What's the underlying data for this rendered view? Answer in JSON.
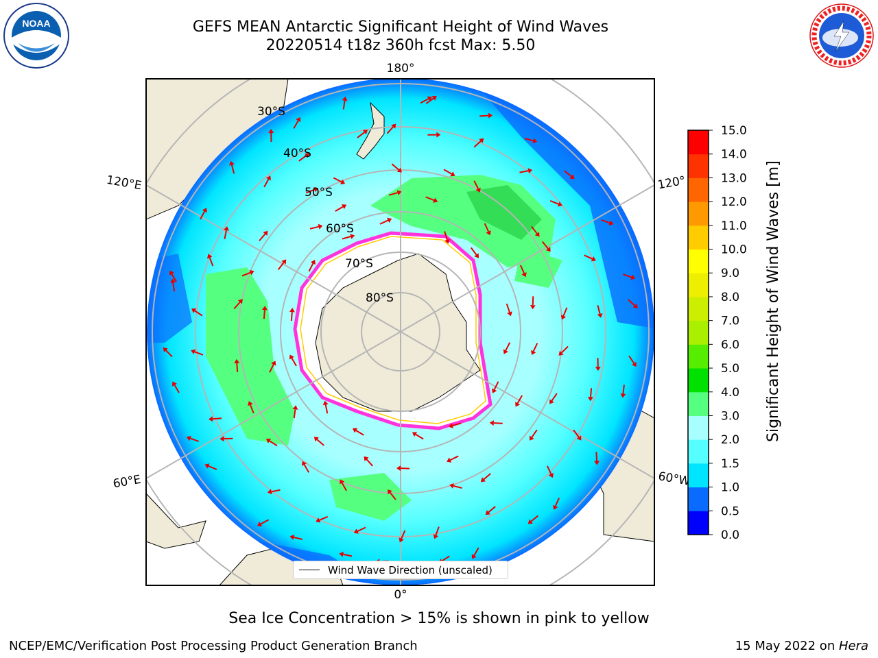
{
  "header": {
    "title_line1": "GEFS MEAN Antarctic Significant Height of Wind Waves",
    "title_line2": "20220514 t18z 360h fcst   Max: 5.50"
  },
  "logos": {
    "left_logo_text": "NOAA",
    "right_logo_text": "NATIONAL WEATHER SERVICE"
  },
  "map": {
    "longitude_labels": [
      "180°",
      "120°E",
      "120°",
      "60°E",
      "60°W",
      "0°"
    ],
    "latitude_labels": [
      "30°S",
      "40°S",
      "50°S",
      "60°S",
      "70°S",
      "80°S"
    ],
    "legend_label": "Wind Wave Direction (unscaled)",
    "arrow_color": "#e60000",
    "land_color": "#efebd8",
    "grid_color": "#b5b5b5"
  },
  "colorbar": {
    "label": "Significant Height of Wind Waves [m]",
    "ticks": [
      "0.0",
      "0.5",
      "1.0",
      "1.5",
      "2.0",
      "3.0",
      "4.0",
      "5.0",
      "6.0",
      "7.0",
      "8.0",
      "9.0",
      "10.0",
      "11.0",
      "12.0",
      "13.0",
      "14.0",
      "15.0"
    ],
    "colors": [
      "#0000ff",
      "#0a6cff",
      "#00e5ff",
      "#55ffff",
      "#a8ffff",
      "#55ff80",
      "#00e100",
      "#55ee00",
      "#aaee00",
      "#ccee00",
      "#eeee00",
      "#ffff00",
      "#ffcc00",
      "#ff9900",
      "#ff6600",
      "#ff3300",
      "#ff0000"
    ]
  },
  "footer": {
    "subtitle": "Sea Ice Concentration > 15% is shown in pink to yellow",
    "left": "NCEP/EMC/Verification Post Processing Product Generation Branch",
    "date": "15 May 2022 on ",
    "host": "Hera"
  }
}
